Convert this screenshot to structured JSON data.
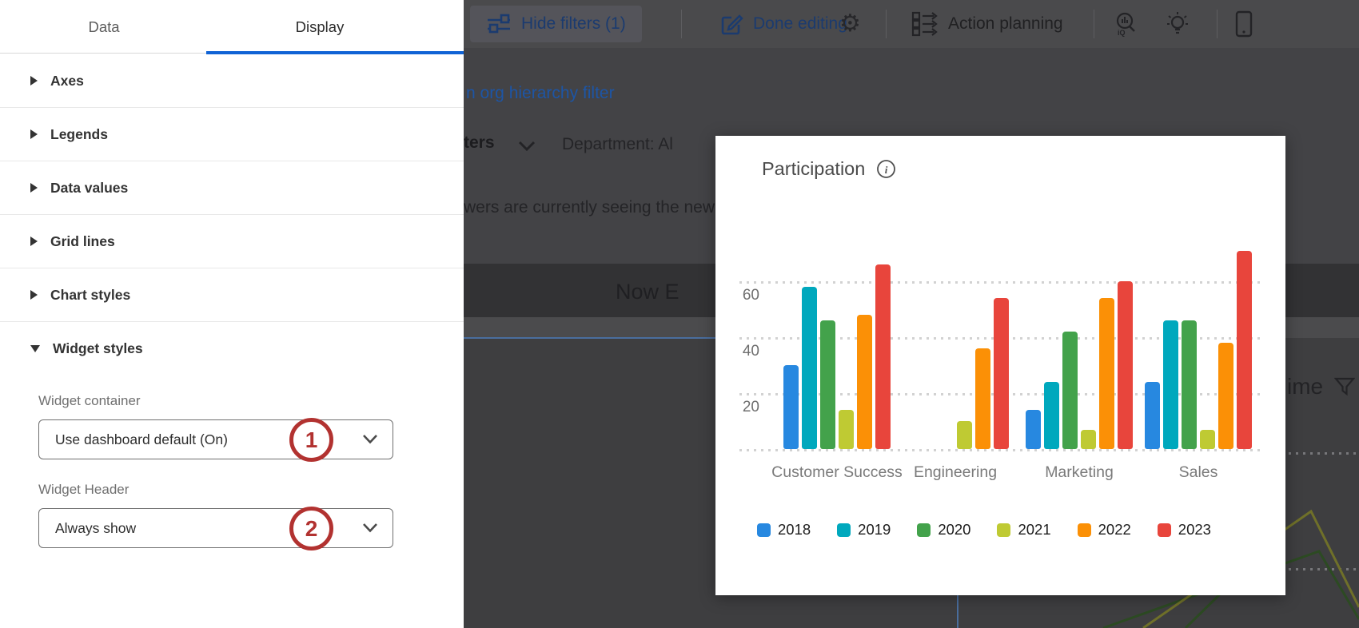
{
  "left_panel": {
    "tabs": [
      {
        "label": "Data",
        "active": false
      },
      {
        "label": "Display",
        "active": true
      }
    ],
    "sections": [
      {
        "label": "Axes",
        "expanded": false
      },
      {
        "label": "Legends",
        "expanded": false
      },
      {
        "label": "Data values",
        "expanded": false
      },
      {
        "label": "Grid lines",
        "expanded": false
      },
      {
        "label": "Chart styles",
        "expanded": false
      },
      {
        "label": "Widget styles",
        "expanded": true
      }
    ],
    "widget_styles": {
      "fields": [
        {
          "label": "Widget container",
          "value": "Use dashboard default (On)",
          "badge": "1"
        },
        {
          "label": "Widget Header",
          "value": "Always show",
          "badge": "2"
        }
      ]
    }
  },
  "toolbar": {
    "hide_filters_label": "Hide filters (1)",
    "done_editing_label": "Done editing",
    "action_planning_label": "Action planning",
    "gear_glyph": "⚙",
    "icons": [
      "sliders-icon",
      "compose-icon",
      "gear-icon",
      "action-planning-icon",
      "iq-magnifier-icon",
      "lightbulb-icon",
      "mobile-device-icon"
    ]
  },
  "background": {
    "org_hierarchy_link": "n org hierarchy filter",
    "filters_clipped_label": "ters",
    "department_label": "Department: Al",
    "viewers_message": "wers are currently seeing the new",
    "banner_text": "Now E",
    "time_clipped_label": "ime"
  },
  "chart_data": {
    "type": "bar",
    "title": "Participation",
    "info_icon": "info-icon",
    "categories": [
      "Customer Success",
      "Engineering",
      "Marketing",
      "Sales"
    ],
    "series": [
      {
        "name": "2018",
        "color": "#2788e0",
        "values": [
          30,
          0,
          14,
          24
        ]
      },
      {
        "name": "2019",
        "color": "#00a8bd",
        "values": [
          58,
          0,
          24,
          46
        ]
      },
      {
        "name": "2020",
        "color": "#43a24b",
        "values": [
          46,
          0,
          42,
          46
        ]
      },
      {
        "name": "2021",
        "color": "#bfca33",
        "values": [
          14,
          10,
          7,
          7
        ]
      },
      {
        "name": "2022",
        "color": "#fb9006",
        "values": [
          48,
          36,
          54,
          38
        ]
      },
      {
        "name": "2023",
        "color": "#e8453c",
        "values": [
          66,
          54,
          60,
          71
        ]
      }
    ],
    "yticks": [
      20,
      40,
      60
    ],
    "ylim": [
      0,
      78
    ],
    "grid": "dotted-horizontal",
    "legend_position": "bottom"
  }
}
